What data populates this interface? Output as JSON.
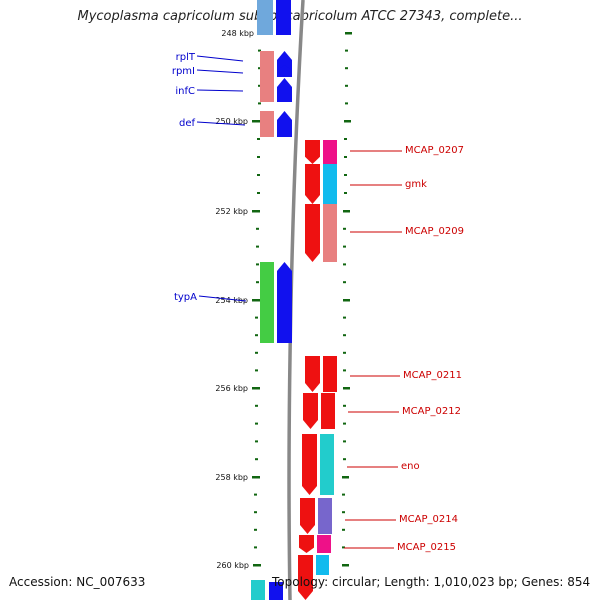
{
  "title": "Mycoplasma capricolum subsp. capricolum ATCC 27343, complete...",
  "footer": {
    "accession": "Accession: NC_007633",
    "stats": "Topology: circular; Length: 1,010,023 bp; Genes: 854"
  },
  "scale_ticks": [
    {
      "label": "248 kbp",
      "kbp": 248
    },
    {
      "label": "250 kbp",
      "kbp": 250
    },
    {
      "label": "252 kbp",
      "kbp": 252
    },
    {
      "label": "254 kbp",
      "kbp": 254
    },
    {
      "label": "256 kbp",
      "kbp": 256
    },
    {
      "label": "258 kbp",
      "kbp": 258
    },
    {
      "label": "260 kbp",
      "kbp": 260
    }
  ],
  "reverse_strand_genes": [
    {
      "name": "rplT",
      "label": "rplT",
      "color": "#e88080"
    },
    {
      "name": "rpmI",
      "label": "rpmI",
      "color": "#e88080"
    },
    {
      "name": "infC",
      "label": "infC",
      "color": "#e88080"
    },
    {
      "name": "def",
      "label": "def",
      "color": "#e88080"
    },
    {
      "name": "typA",
      "label": "typA",
      "color": "#44cc44"
    }
  ],
  "forward_strand_genes": [
    {
      "name": "MCAP_0207",
      "label": "MCAP_0207",
      "color": "#ee1188"
    },
    {
      "name": "gmk",
      "label": "gmk",
      "color": "#11bbee"
    },
    {
      "name": "MCAP_0209",
      "label": "MCAP_0209",
      "color": "#e88080"
    },
    {
      "name": "MCAP_0211",
      "label": "MCAP_0211",
      "color": "#ee1111"
    },
    {
      "name": "MCAP_0212",
      "label": "MCAP_0212",
      "color": "#ee1111"
    },
    {
      "name": "eno",
      "label": "eno",
      "color": "#22cccc"
    },
    {
      "name": "MCAP_0214",
      "label": "MCAP_0214",
      "color": "#7766cc"
    },
    {
      "name": "MCAP_0215",
      "label": "MCAP_0215",
      "color": "#ee1188"
    }
  ],
  "colors": {
    "cds": "#ee1111",
    "reverse_cds": "#1111ee",
    "backbone": "#888888",
    "tick": "#116611",
    "reverse_label": "#0000cc",
    "forward_label": "#cc0000"
  }
}
